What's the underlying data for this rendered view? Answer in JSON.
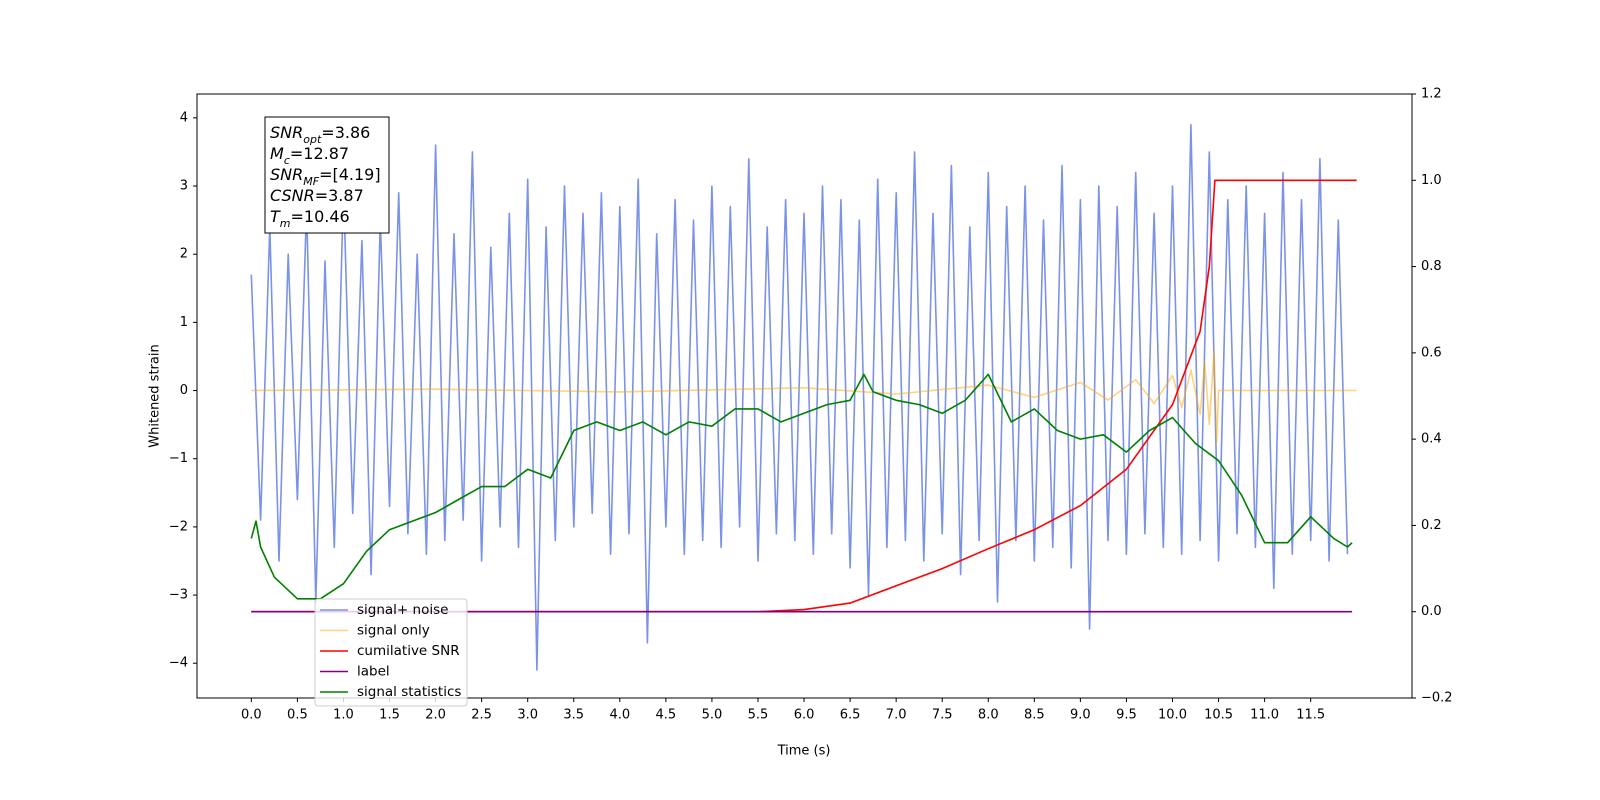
{
  "chart_data": {
    "type": "line",
    "xlabel": "Time (s)",
    "ylabel": "Whitened strain",
    "xlim": [
      -0.59,
      12.6
    ],
    "ylim": [
      -4.51,
      4.35
    ],
    "y2lim": [
      -0.2,
      1.2
    ],
    "xticks": [
      {
        "value": 0,
        "label": "0.0"
      },
      {
        "value": 0.5,
        "label": "0.5"
      },
      {
        "value": 1,
        "label": "1.0"
      },
      {
        "value": 1.5,
        "label": "1.5"
      },
      {
        "value": 2,
        "label": "2.0"
      },
      {
        "value": 2.5,
        "label": "2.5"
      },
      {
        "value": 3,
        "label": "3.0"
      },
      {
        "value": 3.5,
        "label": "3.5"
      },
      {
        "value": 4,
        "label": "4.0"
      },
      {
        "value": 4.5,
        "label": "4.5"
      },
      {
        "value": 5,
        "label": "5.0"
      },
      {
        "value": 5.5,
        "label": "5.5"
      },
      {
        "value": 6,
        "label": "6.0"
      },
      {
        "value": 6.5,
        "label": "6.5"
      },
      {
        "value": 7,
        "label": "7.0"
      },
      {
        "value": 7.5,
        "label": "7.5"
      },
      {
        "value": 8,
        "label": "8.0"
      },
      {
        "value": 8.5,
        "label": "8.5"
      },
      {
        "value": 9,
        "label": "9.0"
      },
      {
        "value": 9.5,
        "label": "9.5"
      },
      {
        "value": 10,
        "label": "10.0"
      },
      {
        "value": 10.5,
        "label": "10.5"
      },
      {
        "value": 11,
        "label": "11.0"
      },
      {
        "value": 11.5,
        "label": "11.5"
      }
    ],
    "yticks": [
      {
        "value": -4,
        "label": "−4"
      },
      {
        "value": -3,
        "label": "−3"
      },
      {
        "value": -2,
        "label": "−2"
      },
      {
        "value": -1,
        "label": "−1"
      },
      0,
      1,
      2,
      3,
      4
    ],
    "y2ticks": [
      {
        "value": -0.2,
        "label": "−0.2"
      },
      {
        "value": 0,
        "label": "0.0"
      },
      {
        "value": 0.2,
        "label": "0.2"
      },
      {
        "value": 0.4,
        "label": "0.4"
      },
      {
        "value": 0.6,
        "label": "0.6"
      },
      {
        "value": 0.8,
        "label": "0.8"
      },
      {
        "value": 1,
        "label": "1.0"
      },
      {
        "value": 1.2,
        "label": "1.2"
      }
    ],
    "legend": "lower left",
    "annotations": [
      {
        "base": "SNR",
        "sub": "opt",
        "text": "=3.86"
      },
      {
        "base": "M",
        "sub": "c",
        "text": "=12.87"
      },
      {
        "base": "SNR",
        "sub": "MF",
        "text": "=[4.19]"
      },
      {
        "base": "CSNR",
        "text": "=3.87"
      },
      {
        "base": "T",
        "sub": "m",
        "text": "=10.46"
      }
    ],
    "series": [
      {
        "name": "signal+ noise",
        "color": "#7b93e6",
        "x": [
          0,
          0.1,
          0.2,
          0.3,
          0.4,
          0.5,
          0.6,
          0.7,
          0.8,
          0.9,
          1,
          1.1,
          1.2,
          1.3,
          1.4,
          1.5,
          1.6,
          1.7,
          1.8,
          1.9,
          2,
          2.1,
          2.2,
          2.3,
          2.4,
          2.5,
          2.6,
          2.7,
          2.8,
          2.9,
          3,
          3.1,
          3.2,
          3.3,
          3.4,
          3.5,
          3.6,
          3.7,
          3.8,
          3.9,
          4,
          4.1,
          4.2,
          4.3,
          4.4,
          4.5,
          4.6,
          4.7,
          4.8,
          4.9,
          5,
          5.1,
          5.2,
          5.3,
          5.4,
          5.5,
          5.6,
          5.7,
          5.8,
          5.9,
          6,
          6.1,
          6.2,
          6.3,
          6.4,
          6.5,
          6.6,
          6.7,
          6.8,
          6.9,
          7,
          7.1,
          7.2,
          7.3,
          7.4,
          7.5,
          7.6,
          7.7,
          7.8,
          7.9,
          8,
          8.1,
          8.2,
          8.3,
          8.4,
          8.5,
          8.6,
          8.7,
          8.8,
          8.9,
          9,
          9.1,
          9.2,
          9.3,
          9.4,
          9.5,
          9.6,
          9.7,
          9.8,
          9.9,
          10,
          10.1,
          10.2,
          10.3,
          10.4,
          10.5,
          10.6,
          10.7,
          10.8,
          10.9,
          11,
          11.1,
          11.2,
          11.3,
          11.4,
          11.5,
          11.6,
          11.7,
          11.8,
          11.9
        ],
        "values": [
          1.7,
          -1.9,
          2.4,
          -2.5,
          2.0,
          -1.6,
          2.7,
          -3.1,
          1.9,
          -2.3,
          3.0,
          -1.8,
          2.2,
          -2.7,
          2.5,
          -1.7,
          2.9,
          -2.1,
          2.0,
          -2.4,
          3.6,
          -2.2,
          2.3,
          -1.9,
          3.5,
          -2.5,
          2.1,
          -2.0,
          2.6,
          -2.3,
          3.1,
          -4.1,
          2.4,
          -2.2,
          3.0,
          -2.0,
          2.6,
          -1.8,
          2.9,
          -2.4,
          2.7,
          -2.1,
          3.1,
          -3.7,
          2.3,
          -2.0,
          2.8,
          -2.4,
          2.5,
          -2.2,
          3.0,
          -2.3,
          2.7,
          -2.0,
          3.4,
          -2.5,
          2.4,
          -2.1,
          2.8,
          -2.2,
          2.6,
          -2.4,
          3.0,
          -2.1,
          2.8,
          -2.6,
          2.5,
          -3.0,
          3.1,
          -2.3,
          2.9,
          -2.2,
          3.5,
          -2.5,
          2.6,
          -2.1,
          3.3,
          -2.7,
          2.4,
          -2.2,
          3.2,
          -3.1,
          2.7,
          -2.2,
          3.0,
          -2.5,
          2.5,
          -2.3,
          3.3,
          -2.6,
          2.8,
          -3.5,
          3.0,
          -2.2,
          2.7,
          -2.4,
          3.2,
          -2.1,
          2.6,
          -2.3,
          3.0,
          -2.4,
          3.9,
          -2.2,
          3.5,
          -2.5,
          2.8,
          -2.1,
          3.0,
          -2.3,
          2.6,
          -2.9,
          3.2,
          -2.4,
          2.8,
          -2.2,
          3.4,
          -2.5,
          2.5,
          -2.4
        ]
      },
      {
        "name": "signal only",
        "color": "#ffa500",
        "x": [
          0,
          2,
          4,
          6,
          7,
          8,
          8.5,
          9,
          9.3,
          9.6,
          9.8,
          10,
          10.1,
          10.2,
          10.3,
          10.35,
          10.4,
          10.45,
          10.48,
          10.5,
          12
        ],
        "values": [
          0,
          0.02,
          -0.02,
          0.04,
          -0.05,
          0.08,
          -0.1,
          0.12,
          -0.14,
          0.16,
          -0.19,
          0.22,
          -0.25,
          0.3,
          -0.35,
          0.42,
          -0.5,
          0.58,
          -0.75,
          0,
          0
        ]
      },
      {
        "name": "cumilative SNR",
        "color": "#ff0000",
        "axis": "y2",
        "x": [
          0,
          5.5,
          6,
          6.5,
          7,
          7.5,
          8,
          8.5,
          9,
          9.5,
          10,
          10.3,
          10.4,
          10.46,
          12
        ],
        "values": [
          0,
          0,
          0.005,
          0.02,
          0.06,
          0.1,
          0.146,
          0.19,
          0.246,
          0.33,
          0.48,
          0.65,
          0.8,
          1.0,
          1.0
        ]
      },
      {
        "name": "label",
        "color": "#800080",
        "axis": "y2",
        "x": [
          0,
          11.95
        ],
        "values": [
          0,
          0
        ]
      },
      {
        "name": "signal statistics",
        "color": "#008000",
        "axis": "y2",
        "x": [
          0,
          0.05,
          0.1,
          0.25,
          0.5,
          0.75,
          1,
          1.25,
          1.5,
          1.75,
          2,
          2.25,
          2.5,
          2.75,
          3,
          3.25,
          3.5,
          3.75,
          4,
          4.25,
          4.5,
          4.75,
          5,
          5.25,
          5.5,
          5.75,
          6,
          6.25,
          6.5,
          6.65,
          6.75,
          7,
          7.25,
          7.5,
          7.75,
          8,
          8.25,
          8.5,
          8.75,
          9,
          9.25,
          9.5,
          9.75,
          10,
          10.25,
          10.5,
          10.75,
          11,
          11.25,
          11.5,
          11.75,
          11.9,
          11.95
        ],
        "values": [
          0.17,
          0.21,
          0.15,
          0.08,
          0.03,
          0.03,
          0.065,
          0.14,
          0.19,
          0.21,
          0.23,
          0.26,
          0.29,
          0.29,
          0.33,
          0.31,
          0.42,
          0.44,
          0.42,
          0.44,
          0.41,
          0.44,
          0.43,
          0.47,
          0.47,
          0.44,
          0.46,
          0.48,
          0.49,
          0.55,
          0.51,
          0.49,
          0.48,
          0.46,
          0.49,
          0.55,
          0.44,
          0.47,
          0.42,
          0.4,
          0.41,
          0.37,
          0.42,
          0.45,
          0.39,
          0.35,
          0.27,
          0.16,
          0.16,
          0.22,
          0.17,
          0.15,
          0.16
        ]
      }
    ]
  }
}
